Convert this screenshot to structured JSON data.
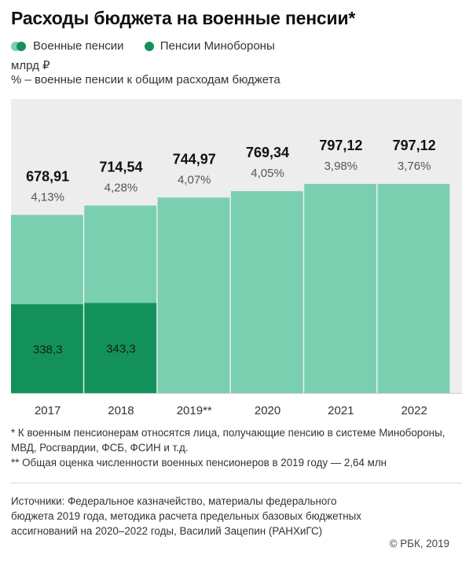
{
  "title": "Расходы бюджета на военные пенсии*",
  "legend": [
    {
      "label": "Военные пенсии",
      "color": "#7acfb0"
    },
    {
      "label": "Пенсии Минобороны",
      "color": "#12925a"
    }
  ],
  "unit_label": "млрд ₽",
  "percent_note": "% – военные пенсии к общим расходам бюджета",
  "colors": {
    "total": "#7acfb0",
    "mod": "#12925a",
    "panel": "#ededed"
  },
  "chart_data": {
    "type": "bar",
    "categories": [
      "2017",
      "2018",
      "2019**",
      "2020",
      "2021",
      "2022"
    ],
    "series": [
      {
        "name": "Военные пенсии",
        "values": [
          678.91,
          714.54,
          744.97,
          769.34,
          797.12,
          797.12
        ]
      },
      {
        "name": "Пенсии Минобороны",
        "values": [
          338.3,
          343.3,
          null,
          null,
          null,
          null
        ]
      }
    ],
    "value_labels": [
      "678,91",
      "714,54",
      "744,97",
      "769,34",
      "797,12",
      "797,12"
    ],
    "percent_labels": [
      "4,13%",
      "4,28%",
      "4,07%",
      "4,05%",
      "3,98%",
      "3,76%"
    ],
    "mod_labels": [
      "338,3",
      "343,3",
      "",
      "",
      "",
      ""
    ],
    "ylim": [
      0,
      1000
    ],
    "grid": false,
    "legend_position": "top-left"
  },
  "footnotes": [
    "* К военным пенсионерам относятся лица, получающие пенсию в системе Минобороны, МВД, Росгвардии, ФСБ, ФСИН и т.д.",
    "** Общая оценка численности военных пенсионеров в 2019 году — 2,64 млн"
  ],
  "sources": "Источники: Федеральное казначейство, материалы федерального бюджета 2019 года, методика расчета предельных базовых бюджетных ассигнований на 2020–2022 годы, Василий Зацепин (РАНХиГС)",
  "copyright": "© РБК, 2019"
}
